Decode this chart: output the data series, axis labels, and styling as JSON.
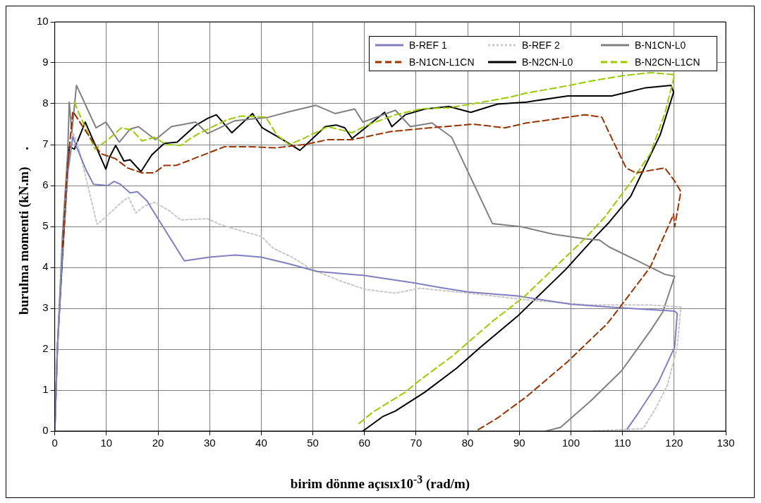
{
  "chart_data": {
    "type": "line",
    "xlabel": "birim dönme açısıx10$^{-3}$ (rad/m)",
    "ylabel": "burulma momenti (kN.m)     .",
    "xlim": [
      0,
      130
    ],
    "xticks": [
      0,
      10,
      20,
      30,
      40,
      50,
      60,
      70,
      80,
      90,
      100,
      110,
      120,
      130
    ],
    "ylim": [
      0,
      10
    ],
    "yticks": [
      0,
      1,
      2,
      3,
      4,
      5,
      6,
      7,
      8,
      9,
      10
    ],
    "grid": true,
    "legend": "top right",
    "marker": "none",
    "series": [
      {
        "name": "B-REF 1",
        "color": "#8080c0",
        "line_style": "solid",
        "x": [
          0,
          0.5,
          1.5,
          2.5,
          3.5,
          4.2,
          6.1,
          7.5,
          10.3,
          11.5,
          12.7,
          14.6,
          16,
          17.9,
          18.8,
          25.1,
          30,
          35,
          40,
          45,
          50.8,
          60,
          69.6,
          75,
          80,
          89.6,
          100,
          108.4,
          120.1,
          120.6,
          120.1,
          116.9,
          113,
          110.9
        ],
        "values": [
          0,
          2,
          4.5,
          6.3,
          7.2,
          6.95,
          6.37,
          6.03,
          6.0,
          6.1,
          6.03,
          5.82,
          5.85,
          5.62,
          5.43,
          4.16,
          4.25,
          4.3,
          4.25,
          4.1,
          3.9,
          3.8,
          3.62,
          3.5,
          3.4,
          3.3,
          3.1,
          3.02,
          2.93,
          2.87,
          2.05,
          1.18,
          0.43,
          0.05
        ]
      },
      {
        "name": "B-REF 2",
        "color": "#c8c8c8",
        "line_style": "dotted",
        "x": [
          0,
          0.5,
          1.5,
          2.5,
          3.5,
          4.5,
          8.2,
          10.3,
          13.2,
          14.3,
          15.7,
          17.4,
          19.3,
          22.1,
          24.4,
          29.6,
          32,
          36.7,
          40,
          42.3,
          46.1,
          49.8,
          55.5,
          60.2,
          66,
          70.7,
          80.2,
          91.9,
          103.7,
          115.4,
          121.3,
          120.6,
          118.7,
          116.4,
          114,
          104.1
        ],
        "values": [
          0,
          2,
          4.5,
          6.3,
          7.3,
          7.0,
          5.05,
          5.28,
          5.62,
          5.71,
          5.33,
          5.5,
          5.59,
          5.39,
          5.16,
          5.19,
          5.05,
          4.87,
          4.76,
          4.47,
          4.24,
          3.95,
          3.66,
          3.46,
          3.37,
          3.49,
          3.37,
          3.2,
          3.08,
          3.08,
          3.03,
          2.05,
          1.12,
          0.55,
          0.06,
          0
        ]
      },
      {
        "name": "B-N1CN-L0",
        "color": "#808080",
        "line_style": "solid",
        "x": [
          0,
          0.5,
          1.5,
          2.5,
          2.8,
          3.3,
          4.2,
          8,
          9.9,
          12.5,
          14.6,
          16.2,
          19.5,
          22.6,
          27.3,
          29.6,
          34.8,
          41.4,
          45.6,
          50.6,
          54.3,
          58.1,
          59.7,
          66,
          68.9,
          73.1,
          76.9,
          84.8,
          90.5,
          96.6,
          102.7,
          105.5,
          107.4,
          113.1,
          118.2,
          120.1,
          117.8,
          115.4,
          109.8,
          103.7,
          98,
          95.2
        ],
        "values": [
          0,
          2,
          4.8,
          6.8,
          8.04,
          7.3,
          8.45,
          7.41,
          7.55,
          7.06,
          7.38,
          7.44,
          7.12,
          7.44,
          7.55,
          7.27,
          7.58,
          7.67,
          7.81,
          7.96,
          7.76,
          7.87,
          7.55,
          7.84,
          7.44,
          7.53,
          7.18,
          5.07,
          4.99,
          4.81,
          4.7,
          4.67,
          4.5,
          4.15,
          3.83,
          3.78,
          2.91,
          2.45,
          1.47,
          0.72,
          0.09,
          0
        ]
      },
      {
        "name": "B-N1CN-L1CN",
        "color": "#993300",
        "line_style": "dashed",
        "x": [
          1.5,
          2.5,
          3.5,
          5.9,
          8.9,
          11.7,
          14.1,
          16.9,
          19.3,
          21.2,
          23.5,
          28.2,
          32.9,
          38.1,
          42.8,
          48.2,
          52.9,
          57.6,
          65.1,
          72.6,
          81.1,
          87.2,
          91.4,
          96.1,
          102.7,
          106,
          107.4,
          110.7,
          112.6,
          118.2,
          120.1,
          121.3,
          120.1,
          119.9,
          115.4,
          108.8,
          107,
          99.4,
          91.4,
          85.8,
          81.6
        ],
        "values": [
          4.5,
          6.5,
          7.81,
          7.35,
          6.78,
          6.66,
          6.43,
          6.31,
          6.31,
          6.49,
          6.49,
          6.72,
          6.95,
          6.95,
          6.92,
          7.0,
          7.12,
          7.12,
          7.32,
          7.41,
          7.5,
          7.41,
          7.53,
          7.61,
          7.73,
          7.67,
          7.29,
          6.43,
          6.31,
          6.43,
          6.11,
          5.85,
          4.99,
          5.3,
          4.01,
          2.91,
          2.62,
          1.7,
          0.84,
          0.32,
          0
        ]
      },
      {
        "name": "B-N2CN-L0",
        "color": "#000000",
        "line_style": "solid",
        "x": [
          0,
          0.5,
          1.5,
          2.8,
          3.8,
          5.9,
          9.9,
          10.6,
          11.8,
          13.4,
          14.6,
          16.7,
          18.8,
          21.2,
          23.7,
          27.3,
          29.6,
          31.3,
          34.3,
          38.3,
          40.2,
          44.2,
          47.5,
          52.4,
          54.5,
          56.2,
          57.6,
          63.9,
          65.3,
          67.9,
          71.7,
          76.4,
          80.6,
          85.8,
          91.4,
          99.4,
          107.9,
          114.5,
          119.4,
          119.9,
          117.3,
          111.6,
          107.4,
          104.6,
          99,
          89.6,
          82.5,
          77.8,
          71.7,
          66,
          64.9,
          63.5,
          59.7
        ],
        "values": [
          0,
          2,
          4.3,
          6.95,
          6.89,
          7.55,
          6.4,
          6.69,
          6.98,
          6.6,
          6.63,
          6.34,
          6.75,
          7.03,
          7.06,
          7.47,
          7.64,
          7.73,
          7.29,
          7.76,
          7.41,
          7.12,
          6.86,
          7.44,
          7.48,
          7.41,
          7.15,
          7.79,
          7.44,
          7.73,
          7.87,
          7.93,
          7.79,
          7.99,
          8.04,
          8.19,
          8.19,
          8.39,
          8.45,
          8.28,
          7.24,
          5.74,
          5.1,
          4.73,
          3.95,
          2.8,
          2.05,
          1.53,
          0.95,
          0.49,
          0.43,
          0.35,
          0
        ]
      },
      {
        "name": "B-N2CN-L1CN",
        "color": "#99cc00",
        "line_style": "dashed",
        "x": [
          3.8,
          4.7,
          7.8,
          10.3,
          12.9,
          15,
          16.9,
          19.3,
          21.6,
          24.4,
          26.3,
          28.2,
          33.4,
          36.2,
          40.9,
          43,
          45.4,
          48.2,
          52.9,
          57.6,
          60.4,
          66,
          71.2,
          76.4,
          82,
          88.2,
          91,
          98.5,
          104.2,
          109.8,
          115.4,
          120.1,
          118.2,
          115.4,
          111.6,
          106.5,
          102.7,
          91,
          84.8,
          76.9,
          70.7,
          67.9,
          61.6,
          58.8
        ],
        "values": [
          8.04,
          7.76,
          6.89,
          7.12,
          7.41,
          7.35,
          7.09,
          7.18,
          7.0,
          6.98,
          7.15,
          7.29,
          7.61,
          7.7,
          7.67,
          7.24,
          7.0,
          7.15,
          7.44,
          7.29,
          7.47,
          7.73,
          7.88,
          7.9,
          8.02,
          8.16,
          8.25,
          8.42,
          8.56,
          8.68,
          8.76,
          8.71,
          7.76,
          6.78,
          6.08,
          5.22,
          4.7,
          3.29,
          2.68,
          1.82,
          1.24,
          0.95,
          0.46,
          0.17
        ]
      }
    ]
  }
}
